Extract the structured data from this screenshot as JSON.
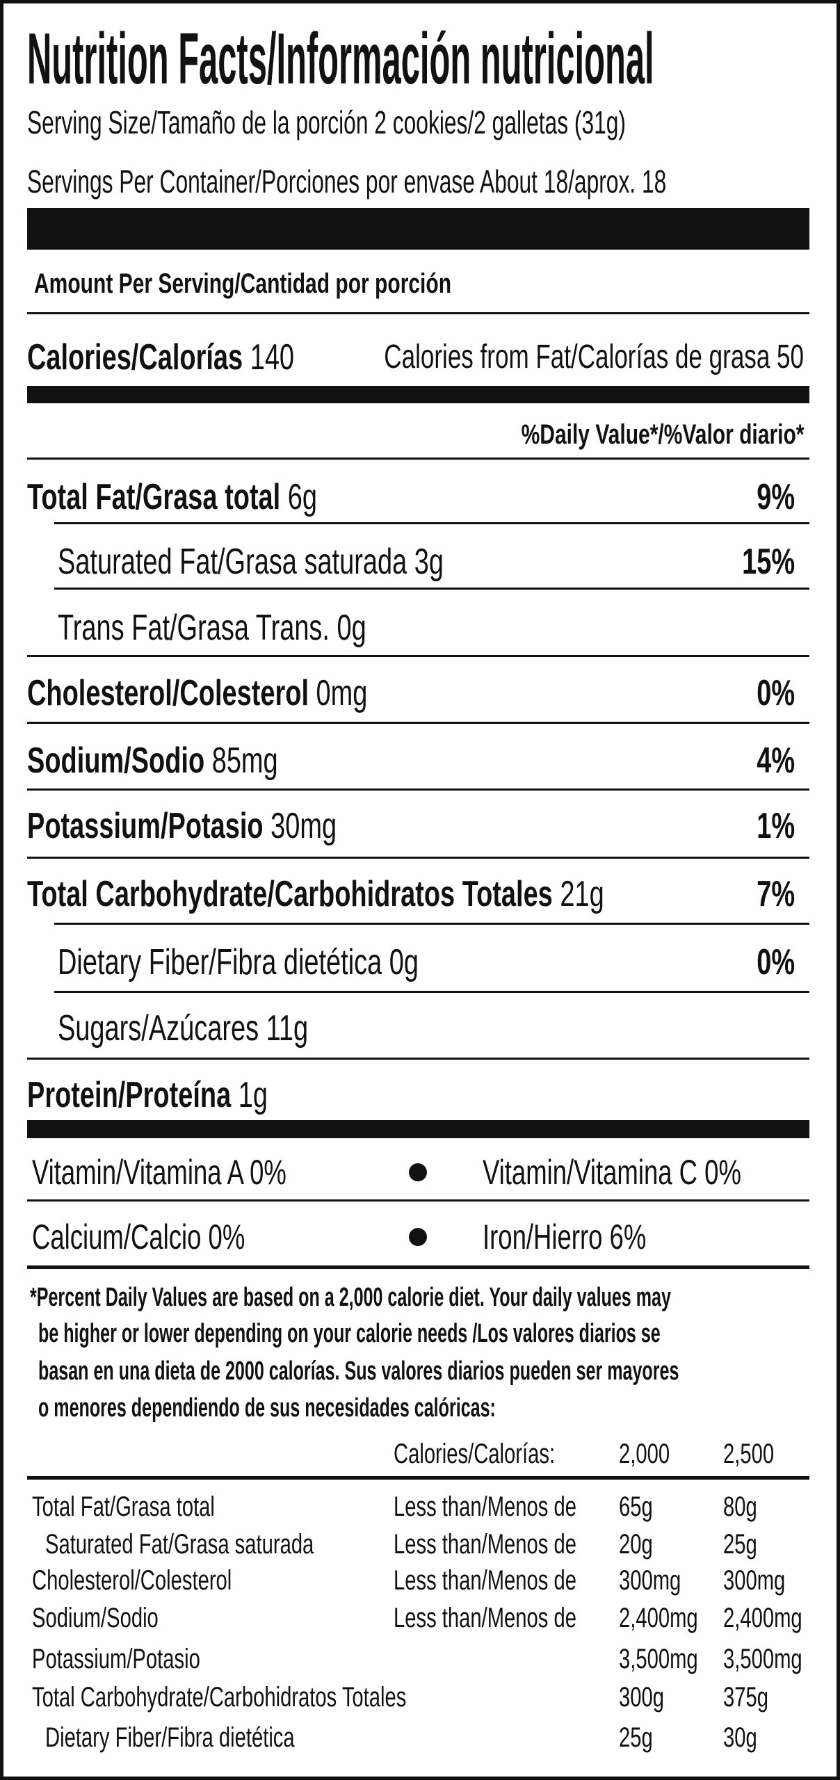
{
  "title": "Nutrition Facts/Información nutricional",
  "serving_size": "Serving Size/Tamaño de la porción 2 cookies/2 galletas (31g)",
  "servings_per_container": "Servings Per Container/Porciones por envase About 18/aprox. 18",
  "amount_per_serving": "Amount Per Serving/Cantidad por porción",
  "calories": {
    "label": "Calories/Calorías",
    "value": "140",
    "from_fat_label": "Calories from Fat/Calorías de grasa",
    "from_fat_value": "50"
  },
  "daily_value_header": "%Daily Value*/%Valor diario*",
  "nutrients": [
    {
      "label": "Total Fat/Grasa total",
      "amount": "6g",
      "dv": "9%"
    },
    {
      "label": "Saturated Fat/Grasa saturada",
      "amount": "3g",
      "dv": "15%"
    },
    {
      "label": "Trans Fat/Grasa Trans.",
      "amount": "0g",
      "dv": ""
    },
    {
      "label": "Cholesterol/Colesterol",
      "amount": "0mg",
      "dv": "0%"
    },
    {
      "label": "Sodium/Sodio",
      "amount": "85mg",
      "dv": "4%"
    },
    {
      "label": "Potassium/Potasio",
      "amount": "30mg",
      "dv": "1%"
    },
    {
      "label": "Total Carbohydrate/Carbohidratos Totales",
      "amount": "21g",
      "dv": "7%"
    },
    {
      "label": "Dietary Fiber/Fibra dietética",
      "amount": "0g",
      "dv": "0%"
    },
    {
      "label": "Sugars/Azúcares",
      "amount": "11g",
      "dv": ""
    },
    {
      "label": "Protein/Proteína",
      "amount": "1g",
      "dv": ""
    }
  ],
  "vitamins": [
    {
      "left": "Vitamin/Vitamina A 0%",
      "right": "Vitamin/Vitamina C 0%"
    },
    {
      "left": "Calcium/Calcio 0%",
      "right": "Iron/Hierro 6%"
    }
  ],
  "footnote": [
    "*Percent Daily Values are based on a 2,000 calorie diet. Your daily values may",
    "be higher or lower depending on your calorie needs /Los valores diarios se",
    "basan en una dieta de 2000 calorías. Sus valores diarios pueden ser mayores",
    "o menores dependiendo de sus necesidades calóricas:"
  ],
  "reference_table": {
    "header": {
      "label": "Calories/Calorías:",
      "col1": "2,000",
      "col2": "2,500"
    },
    "rows": [
      {
        "label": "Total Fat/Grasa total",
        "qualifier": "Less than/Menos de",
        "col1": "65g",
        "col2": "80g"
      },
      {
        "label": "Saturated Fat/Grasa saturada",
        "qualifier": "Less than/Menos de",
        "col1": "20g",
        "col2": "25g"
      },
      {
        "label": "Cholesterol/Colesterol",
        "qualifier": "Less than/Menos de",
        "col1": "300mg",
        "col2": "300mg"
      },
      {
        "label": "Sodium/Sodio",
        "qualifier": "Less than/Menos de",
        "col1": "2,400mg",
        "col2": "2,400mg"
      },
      {
        "label": "Potassium/Potasio",
        "qualifier": "",
        "col1": "3,500mg",
        "col2": "3,500mg"
      },
      {
        "label": "Total Carbohydrate/Carbohidratos Totales",
        "qualifier": "",
        "col1": "300g",
        "col2": "375g"
      },
      {
        "label": "Dietary Fiber/Fibra dietética",
        "qualifier": "",
        "col1": "25g",
        "col2": "30g"
      }
    ]
  }
}
